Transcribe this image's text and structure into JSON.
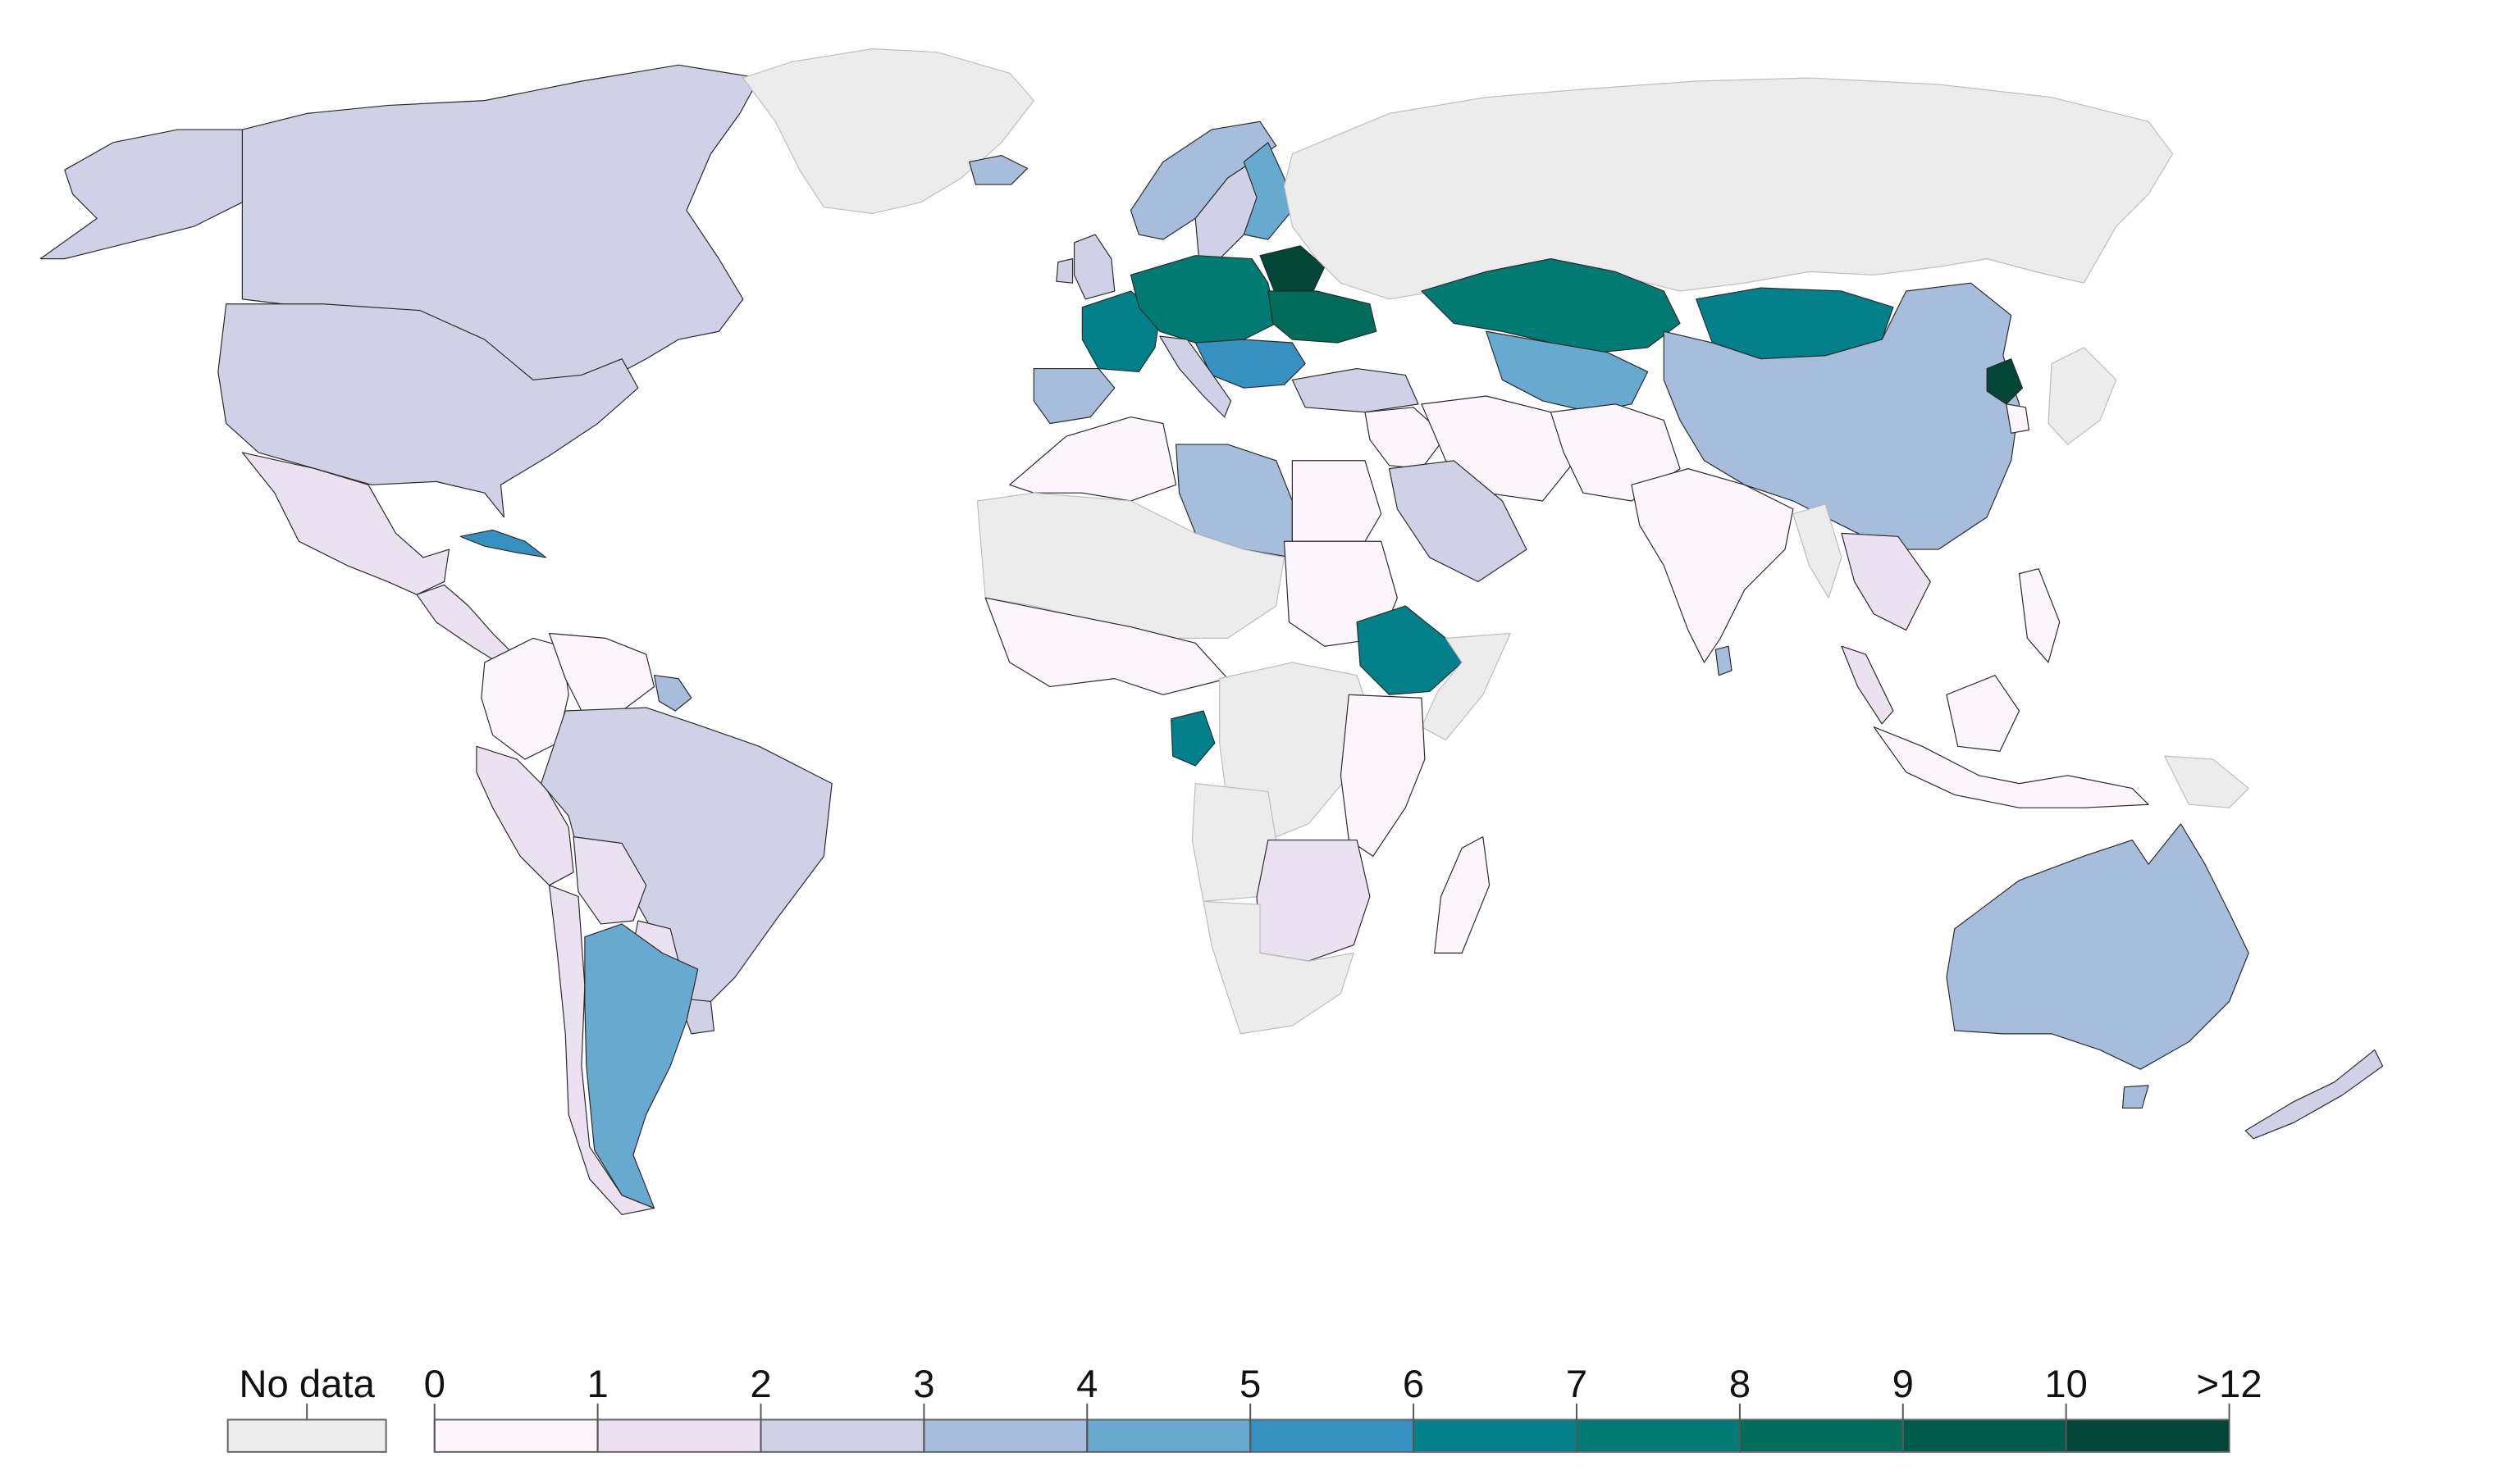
{
  "legend": {
    "no_data_label": "No data",
    "no_data_color": "#ececec",
    "bins": [
      {
        "label": "0",
        "color": "#fcf5fb"
      },
      {
        "label": "1",
        "color": "#ebe1f0"
      },
      {
        "label": "2",
        "color": "#d0d1e6"
      },
      {
        "label": "3",
        "color": "#a6bddb"
      },
      {
        "label": "4",
        "color": "#67a9cf"
      },
      {
        "label": "5",
        "color": "#3690c0"
      },
      {
        "label": "6",
        "color": "#02818a"
      },
      {
        "label": "7",
        "color": "#017a73"
      },
      {
        "label": "8",
        "color": "#016c59"
      },
      {
        "label": "9",
        "color": "#015b4a"
      },
      {
        "label": "10",
        "color": "#014636"
      }
    ],
    "end_label": ">12"
  },
  "map": {
    "palette": {
      "no_data": "#ececec",
      "b0": "#fcf5fb",
      "b1": "#ebe1f0",
      "b2": "#d0d1e6",
      "b3": "#a6bddb",
      "b4": "#67a9cf",
      "b5": "#3690c0",
      "b6": "#02818a",
      "b7": "#017a73",
      "b8": "#016c59",
      "b9": "#015b4a",
      "b12": "#014636"
    },
    "regions": [
      {
        "name": "Canada",
        "bin": "b2"
      },
      {
        "name": "United States",
        "bin": "b2"
      },
      {
        "name": "Greenland",
        "bin": "no_data"
      },
      {
        "name": "Iceland",
        "bin": "b3"
      },
      {
        "name": "Mexico",
        "bin": "b1"
      },
      {
        "name": "Cuba",
        "bin": "b5"
      },
      {
        "name": "Central America",
        "bin": "b1"
      },
      {
        "name": "Colombia",
        "bin": "b0"
      },
      {
        "name": "Venezuela",
        "bin": "b0"
      },
      {
        "name": "Guyana",
        "bin": "b3"
      },
      {
        "name": "Brazil",
        "bin": "b2"
      },
      {
        "name": "Peru",
        "bin": "b1"
      },
      {
        "name": "Bolivia",
        "bin": "b1"
      },
      {
        "name": "Chile",
        "bin": "b1"
      },
      {
        "name": "Paraguay",
        "bin": "b1"
      },
      {
        "name": "Uruguay",
        "bin": "b2"
      },
      {
        "name": "Argentina",
        "bin": "b4"
      },
      {
        "name": "Norway",
        "bin": "b3"
      },
      {
        "name": "Sweden",
        "bin": "b2"
      },
      {
        "name": "Finland",
        "bin": "b4"
      },
      {
        "name": "United Kingdom",
        "bin": "b2"
      },
      {
        "name": "France",
        "bin": "b6"
      },
      {
        "name": "Iberia",
        "bin": "b3"
      },
      {
        "name": "Central Europe",
        "bin": "b7"
      },
      {
        "name": "Belarus",
        "bin": "b12"
      },
      {
        "name": "Ukraine",
        "bin": "b8"
      },
      {
        "name": "Italy",
        "bin": "b2"
      },
      {
        "name": "Balkans",
        "bin": "b5"
      },
      {
        "name": "Turkey",
        "bin": "b2"
      },
      {
        "name": "Russia",
        "bin": "no_data"
      },
      {
        "name": "Kazakhstan",
        "bin": "b7"
      },
      {
        "name": "Central Asia",
        "bin": "b4"
      },
      {
        "name": "Mongolia",
        "bin": "b6"
      },
      {
        "name": "China",
        "bin": "b3"
      },
      {
        "name": "North Korea",
        "bin": "b12"
      },
      {
        "name": "Japan",
        "bin": "no_data"
      },
      {
        "name": "South Korea",
        "bin": "b0"
      },
      {
        "name": "Iran",
        "bin": "b0"
      },
      {
        "name": "Saudi Arabia",
        "bin": "b2"
      },
      {
        "name": "Middle East",
        "bin": "b0"
      },
      {
        "name": "Afghanistan Pakistan",
        "bin": "b0"
      },
      {
        "name": "India",
        "bin": "b0"
      },
      {
        "name": "Sri Lanka",
        "bin": "b3"
      },
      {
        "name": "Myanmar",
        "bin": "no_data"
      },
      {
        "name": "Indochina",
        "bin": "b1"
      },
      {
        "name": "Indonesia",
        "bin": "b0"
      },
      {
        "name": "Philippines",
        "bin": "b0"
      },
      {
        "name": "Papua New Guinea",
        "bin": "no_data"
      },
      {
        "name": "Australia",
        "bin": "b3"
      },
      {
        "name": "New Zealand",
        "bin": "b2"
      },
      {
        "name": "Morocco Algeria",
        "bin": "b0"
      },
      {
        "name": "Libya",
        "bin": "b3"
      },
      {
        "name": "Egypt",
        "bin": "b0"
      },
      {
        "name": "Sahel",
        "bin": "no_data"
      },
      {
        "name": "West Africa",
        "bin": "b0"
      },
      {
        "name": "Sudan",
        "bin": "b0"
      },
      {
        "name": "Ethiopia",
        "bin": "b6"
      },
      {
        "name": "Somalia",
        "bin": "no_data"
      },
      {
        "name": "Gabon",
        "bin": "b6"
      },
      {
        "name": "Central Africa",
        "bin": "no_data"
      },
      {
        "name": "East Africa",
        "bin": "b0"
      },
      {
        "name": "Angola",
        "bin": "no_data"
      },
      {
        "name": "Southern Africa",
        "bin": "b1"
      },
      {
        "name": "South Africa",
        "bin": "no_data"
      },
      {
        "name": "Madagascar",
        "bin": "b0"
      }
    ]
  }
}
